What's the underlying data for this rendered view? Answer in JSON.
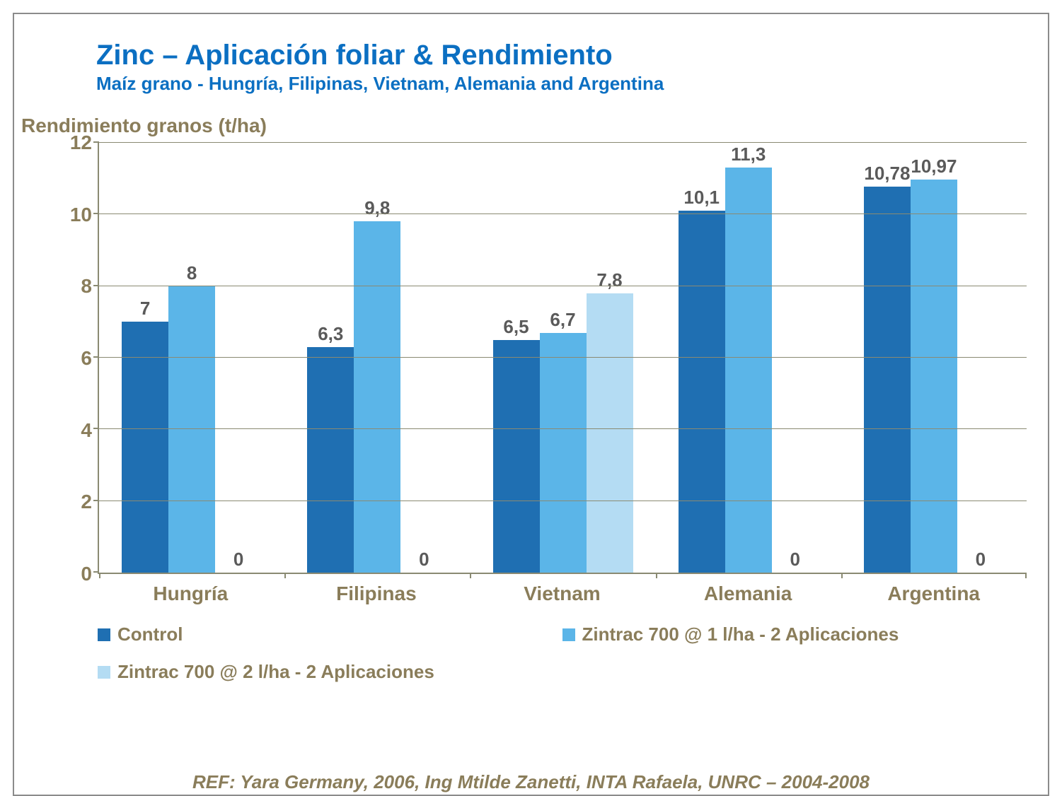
{
  "title": "Zinc – Aplicación foliar & Rendimiento",
  "subtitle": "Maíz grano - Hungría, Filipinas, Vietnam, Alemania and Argentina",
  "title_color": "#0b6fc2",
  "ylabel": "Rendimiento granos (t/ha)",
  "axis_label_color": "#8a7d5a",
  "axis_line_color": "#8a8a72",
  "chart": {
    "type": "bar",
    "ymin": 0,
    "ymax": 12,
    "ystep": 2,
    "categories": [
      "Hungría",
      "Filipinas",
      "Vietnam",
      "Alemania",
      "Argentina"
    ],
    "series": [
      {
        "name": "Control",
        "color": "#1f6fb2",
        "values": [
          7,
          6.3,
          6.5,
          10.1,
          10.78
        ],
        "labels": [
          "7",
          "6,3",
          "6,5",
          "10,1",
          "10,78"
        ]
      },
      {
        "name": "Zintrac 700 @ 1 l/ha - 2 Aplicaciones",
        "color": "#5bb5e8",
        "values": [
          8,
          9.8,
          6.7,
          11.3,
          10.97
        ],
        "labels": [
          "8",
          "9,8",
          "6,7",
          "11,3",
          "10,97"
        ]
      },
      {
        "name": "Zintrac 700 @ 2 l/ha - 2 Aplicaciones",
        "color": "#b4dcf3",
        "values": [
          0,
          0,
          7.8,
          0,
          0
        ],
        "labels": [
          "0",
          "0",
          "7,8",
          "0",
          "0"
        ]
      }
    ],
    "bar_label_color": "#5a5a5a",
    "bar_label_fontsize": 26,
    "background": "#ffffff"
  },
  "legend_layout": [
    {
      "series_index": 0,
      "width_pct": 50
    },
    {
      "series_index": 1,
      "width_pct": 50
    },
    {
      "series_index": 2,
      "width_pct": 100
    }
  ],
  "reference": "REF: Yara Germany, 2006, Ing Mtilde Zanetti, INTA Rafaela, UNRC – 2004-2008",
  "reference_color": "#8a7d5a"
}
